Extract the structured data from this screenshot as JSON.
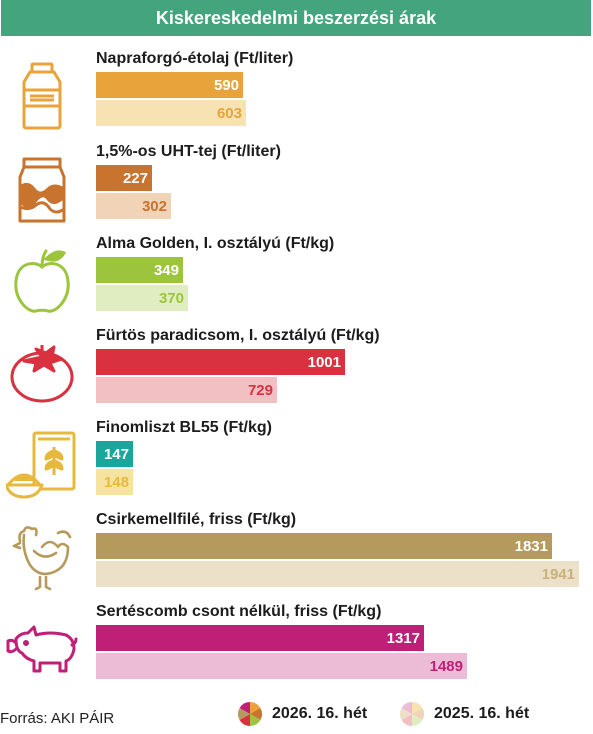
{
  "title": "Kiskereskedelmi beszerzési árak",
  "source": "Forrás: AKI PÁIR",
  "legend": {
    "current": "2026. 16. hét",
    "previous": "2025. 16. hét"
  },
  "chart_data": {
    "type": "bar",
    "orientation": "horizontal",
    "title": "Kiskereskedelmi beszerzési árak",
    "categories": [
      "Napraforgó-étolaj (Ft/liter)",
      "1,5%-os UHT-tej (Ft/liter)",
      "Alma Golden, I. osztályú (Ft/kg)",
      "Fürtös paradicsom, I. osztályú (Ft/kg)",
      "Finomliszt BL55 (Ft/kg)",
      "Csirkemellfilé, friss (Ft/kg)",
      "Sertéscomb csont nélkül, friss (Ft/kg)"
    ],
    "series": [
      {
        "name": "2026. 16. hét",
        "values": [
          590,
          227,
          349,
          1001,
          147,
          1831,
          1317
        ]
      },
      {
        "name": "2025. 16. hét",
        "values": [
          603,
          302,
          370,
          729,
          148,
          1941,
          1489
        ]
      }
    ],
    "xlim": [
      0,
      1941
    ],
    "colors_current": [
      "#e8a33a",
      "#c8732e",
      "#9cc43c",
      "#d9313f",
      "#19a79c",
      "#b59a5e",
      "#c01f77"
    ],
    "colors_previous": [
      "#f6e2b3",
      "#f1d3b8",
      "#e0edc0",
      "#f2c0c3",
      "#f7e3a0",
      "#ece0c8",
      "#ecbcd6"
    ],
    "text_previous": [
      "#e8a33a",
      "#c8732e",
      "#9cc43c",
      "#d9313f",
      "#e6b93c",
      "#c8b27c",
      "#c01f77"
    ],
    "icons": [
      "oil-bottle-icon",
      "milk-carton-icon",
      "apple-icon",
      "tomato-icon",
      "flour-bag-icon",
      "chicken-icon",
      "pig-icon"
    ],
    "icon_colors": [
      "#e8a33a",
      "#c8732e",
      "#9cc43c",
      "#d9313f",
      "#e6b93c",
      "#b59a5e",
      "#c01f77"
    ]
  }
}
